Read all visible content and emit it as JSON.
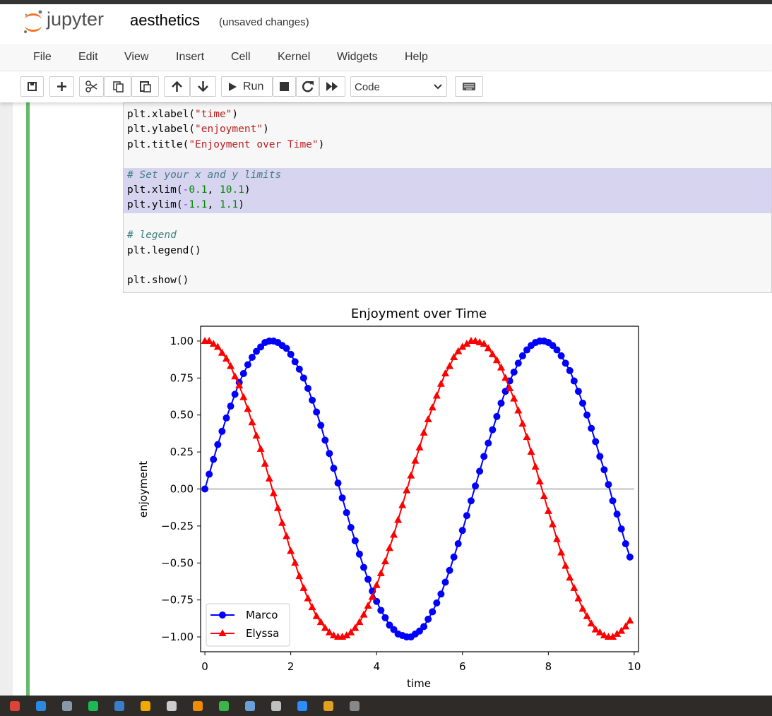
{
  "header": {
    "logo_text": "jupyter",
    "notebook_name": "aesthetics",
    "status": "(unsaved changes)"
  },
  "menu": [
    "File",
    "Edit",
    "View",
    "Insert",
    "Cell",
    "Kernel",
    "Widgets",
    "Help"
  ],
  "toolbar": {
    "run": "Run",
    "cell_type": "Code"
  },
  "code": {
    "blocks": [
      [
        "plt.xlabel(\"time\")",
        "plt.ylabel(\"enjoyment\")",
        "plt.title(\"Enjoyment over Time\")"
      ],
      [
        "# Set your x and y limits",
        "plt.xlim(-0.1, 10.1)",
        "plt.ylim(-1.1, 1.1)"
      ],
      [
        "# legend",
        "plt.legend()"
      ],
      [
        "plt.show()"
      ]
    ]
  },
  "chart_data": {
    "type": "line",
    "title": "Enjoyment over Time",
    "x_label": "time",
    "y_label": "enjoyment",
    "x": [
      0,
      0.1,
      0.2,
      0.3,
      0.4,
      0.5,
      0.6,
      0.7,
      0.8,
      0.9,
      1,
      1.1,
      1.2,
      1.3,
      1.4,
      1.5,
      1.6,
      1.7,
      1.8,
      1.9,
      2,
      2.1,
      2.2,
      2.3,
      2.4,
      2.5,
      2.6,
      2.7,
      2.8,
      2.9,
      3,
      3.1,
      3.2,
      3.3,
      3.4,
      3.5,
      3.6,
      3.7,
      3.8,
      3.9,
      4,
      4.1,
      4.2,
      4.3,
      4.4,
      4.5,
      4.6,
      4.7,
      4.8,
      4.9,
      5,
      5.1,
      5.2,
      5.3,
      5.4,
      5.5,
      5.6,
      5.7,
      5.8,
      5.9,
      6,
      6.1,
      6.2,
      6.3,
      6.4,
      6.5,
      6.6,
      6.7,
      6.8,
      6.9,
      7,
      7.1,
      7.2,
      7.3,
      7.4,
      7.5,
      7.6,
      7.7,
      7.8,
      7.9,
      8,
      8.1,
      8.2,
      8.3,
      8.4,
      8.5,
      8.6,
      8.7,
      8.8,
      8.9,
      9,
      9.1,
      9.2,
      9.3,
      9.4,
      9.5,
      9.6,
      9.7,
      9.8,
      9.9
    ],
    "series": [
      {
        "name": "Marco",
        "color": "#0000ff",
        "marker": "o",
        "values": [
          0,
          0.1,
          0.2,
          0.3,
          0.39,
          0.48,
          0.56,
          0.64,
          0.72,
          0.78,
          0.84,
          0.89,
          0.93,
          0.96,
          0.99,
          1,
          1,
          0.99,
          0.97,
          0.95,
          0.91,
          0.86,
          0.81,
          0.75,
          0.68,
          0.6,
          0.52,
          0.43,
          0.33,
          0.24,
          0.14,
          0.04,
          -0.06,
          -0.16,
          -0.26,
          -0.35,
          -0.44,
          -0.53,
          -0.61,
          -0.69,
          -0.76,
          -0.82,
          -0.87,
          -0.92,
          -0.95,
          -0.98,
          -0.99,
          -1,
          -1,
          -0.98,
          -0.96,
          -0.93,
          -0.88,
          -0.83,
          -0.77,
          -0.71,
          -0.63,
          -0.55,
          -0.46,
          -0.37,
          -0.28,
          -0.18,
          -0.08,
          0.02,
          0.12,
          0.22,
          0.31,
          0.4,
          0.49,
          0.58,
          0.66,
          0.73,
          0.79,
          0.85,
          0.9,
          0.94,
          0.97,
          0.99,
          1,
          1,
          0.99,
          0.97,
          0.94,
          0.9,
          0.85,
          0.8,
          0.73,
          0.66,
          0.58,
          0.5,
          0.41,
          0.32,
          0.22,
          0.13,
          0.03,
          -0.08,
          -0.17,
          -0.27,
          -0.37,
          -0.46
        ]
      },
      {
        "name": "Elyssa",
        "color": "#ff0000",
        "marker": "^",
        "values": [
          1,
          1,
          0.98,
          0.96,
          0.92,
          0.88,
          0.83,
          0.76,
          0.7,
          0.62,
          0.54,
          0.45,
          0.36,
          0.27,
          0.17,
          0.07,
          -0.03,
          -0.13,
          -0.23,
          -0.32,
          -0.42,
          -0.5,
          -0.59,
          -0.67,
          -0.74,
          -0.8,
          -0.86,
          -0.9,
          -0.94,
          -0.97,
          -0.99,
          -1,
          -1,
          -0.99,
          -0.97,
          -0.94,
          -0.9,
          -0.85,
          -0.79,
          -0.73,
          -0.65,
          -0.57,
          -0.49,
          -0.4,
          -0.31,
          -0.21,
          -0.11,
          -0.01,
          0.09,
          0.19,
          0.28,
          0.38,
          0.47,
          0.55,
          0.63,
          0.71,
          0.78,
          0.83,
          0.89,
          0.93,
          0.96,
          0.98,
          1,
          1,
          0.99,
          0.98,
          0.95,
          0.91,
          0.87,
          0.82,
          0.75,
          0.68,
          0.61,
          0.53,
          0.44,
          0.35,
          0.25,
          0.15,
          0.05,
          -0.05,
          -0.15,
          -0.24,
          -0.34,
          -0.43,
          -0.52,
          -0.6,
          -0.67,
          -0.74,
          -0.81,
          -0.86,
          -0.91,
          -0.95,
          -0.97,
          -0.99,
          -1,
          -1,
          -0.98,
          -0.96,
          -0.93,
          -0.89
        ]
      }
    ],
    "hline": {
      "value": 0,
      "color": "#c0c0c0"
    },
    "xlim": [
      -0.1,
      10.1
    ],
    "ylim": [
      -1.1,
      1.1
    ],
    "xticks": [
      0,
      2,
      4,
      6,
      8,
      10
    ],
    "yticks": [
      {
        "value": 1,
        "label": "1.00"
      },
      {
        "value": 0.75,
        "label": "0.75"
      },
      {
        "value": 0.5,
        "label": "0.50"
      },
      {
        "value": 0.25,
        "label": "0.25"
      },
      {
        "value": 0,
        "label": "0.00"
      },
      {
        "value": -0.25,
        "label": "−0.25"
      },
      {
        "value": -0.5,
        "label": "−0.50"
      },
      {
        "value": -0.75,
        "label": "−0.75"
      },
      {
        "value": -1,
        "label": "−1.00"
      }
    ],
    "legend": "lower left"
  }
}
